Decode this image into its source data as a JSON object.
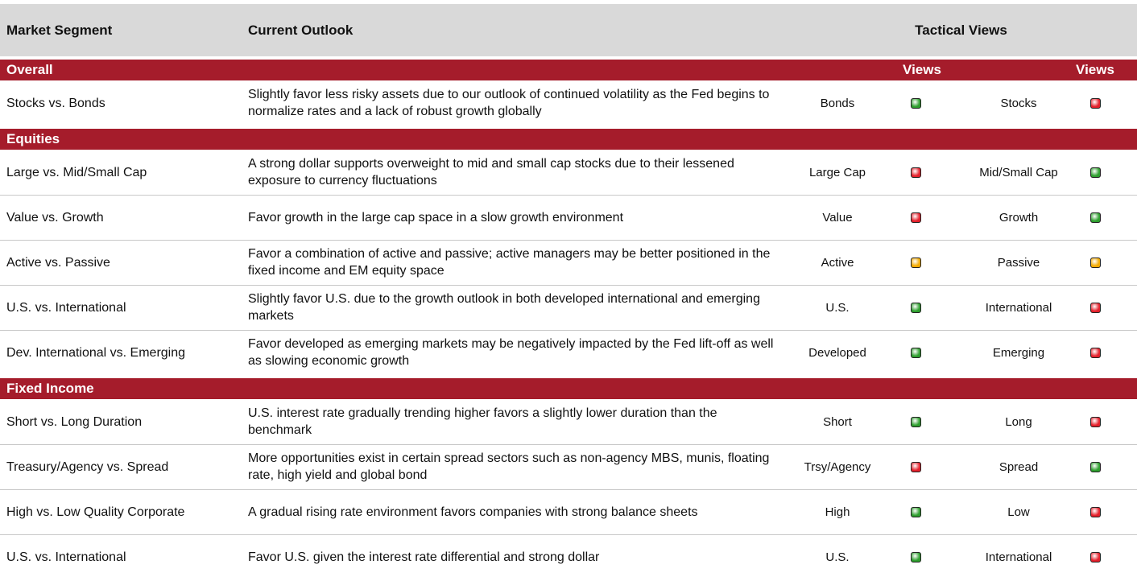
{
  "header": {
    "segment": "Market Segment",
    "outlook": "Current Outlook",
    "tactical": "Tactical Views"
  },
  "sections": [
    {
      "title": "Overall",
      "views_labels": [
        "Views",
        "Views"
      ],
      "rows": [
        {
          "segment": "Stocks vs. Bonds",
          "outlook": "Slightly favor less risky assets due to our outlook of continued volatility as the Fed begins to normalize rates and a lack of robust growth globally",
          "left": {
            "label": "Bonds",
            "signal": "#2e9e2e"
          },
          "right": {
            "label": "Stocks",
            "signal": "#e3202b"
          }
        }
      ]
    },
    {
      "title": "Equities",
      "rows": [
        {
          "segment": "Large vs. Mid/Small Cap",
          "outlook": "A strong dollar supports overweight to mid and small cap stocks due to their lessened exposure to currency fluctuations",
          "left": {
            "label": "Large Cap",
            "signal": "#e3202b"
          },
          "right": {
            "label": "Mid/Small Cap",
            "signal": "#2e9e2e"
          }
        },
        {
          "segment": "Value vs. Growth",
          "outlook": "Favor growth in the large cap space in a slow growth environment",
          "left": {
            "label": "Value",
            "signal": "#e3202b"
          },
          "right": {
            "label": "Growth",
            "signal": "#2e9e2e"
          }
        },
        {
          "segment": "Active vs. Passive",
          "outlook": "Favor a combination of active and passive; active managers may be better positioned in the fixed income and EM equity space",
          "left": {
            "label": "Active",
            "signal": "#f2a900"
          },
          "right": {
            "label": "Passive",
            "signal": "#f2a900"
          }
        },
        {
          "segment": "U.S. vs. International",
          "outlook": "Slightly favor U.S. due to the growth outlook in both developed international and emerging markets",
          "left": {
            "label": "U.S.",
            "signal": "#2e9e2e"
          },
          "right": {
            "label": "International",
            "signal": "#e3202b"
          }
        },
        {
          "segment": "Dev. International vs. Emerging",
          "outlook": "Favor developed as emerging markets may be negatively impacted by the Fed lift-off as well as slowing economic growth",
          "left": {
            "label": "Developed",
            "signal": "#2e9e2e"
          },
          "right": {
            "label": "Emerging",
            "signal": "#e3202b"
          }
        }
      ]
    },
    {
      "title": "Fixed Income",
      "rows": [
        {
          "segment": "Short vs. Long Duration",
          "outlook": "U.S. interest rate gradually trending higher favors a slightly lower duration than the benchmark",
          "left": {
            "label": "Short",
            "signal": "#2e9e2e"
          },
          "right": {
            "label": "Long",
            "signal": "#e3202b"
          }
        },
        {
          "segment": "Treasury/Agency vs. Spread",
          "outlook": "More opportunities exist in certain spread sectors such as non-agency MBS, munis, floating rate, high yield and global bond",
          "left": {
            "label": "Trsy/Agency",
            "signal": "#e3202b"
          },
          "right": {
            "label": "Spread",
            "signal": "#2e9e2e"
          }
        },
        {
          "segment": "High vs. Low Quality Corporate",
          "outlook": "A gradual rising rate environment favors companies with strong balance sheets",
          "left": {
            "label": "High",
            "signal": "#2e9e2e"
          },
          "right": {
            "label": "Low",
            "signal": "#e3202b"
          }
        },
        {
          "segment": "U.S. vs. International",
          "outlook": "Favor U.S. given the interest rate differential and strong dollar",
          "left": {
            "label": "U.S.",
            "signal": "#2e9e2e"
          },
          "right": {
            "label": "International",
            "signal": "#e3202b"
          }
        }
      ]
    }
  ]
}
